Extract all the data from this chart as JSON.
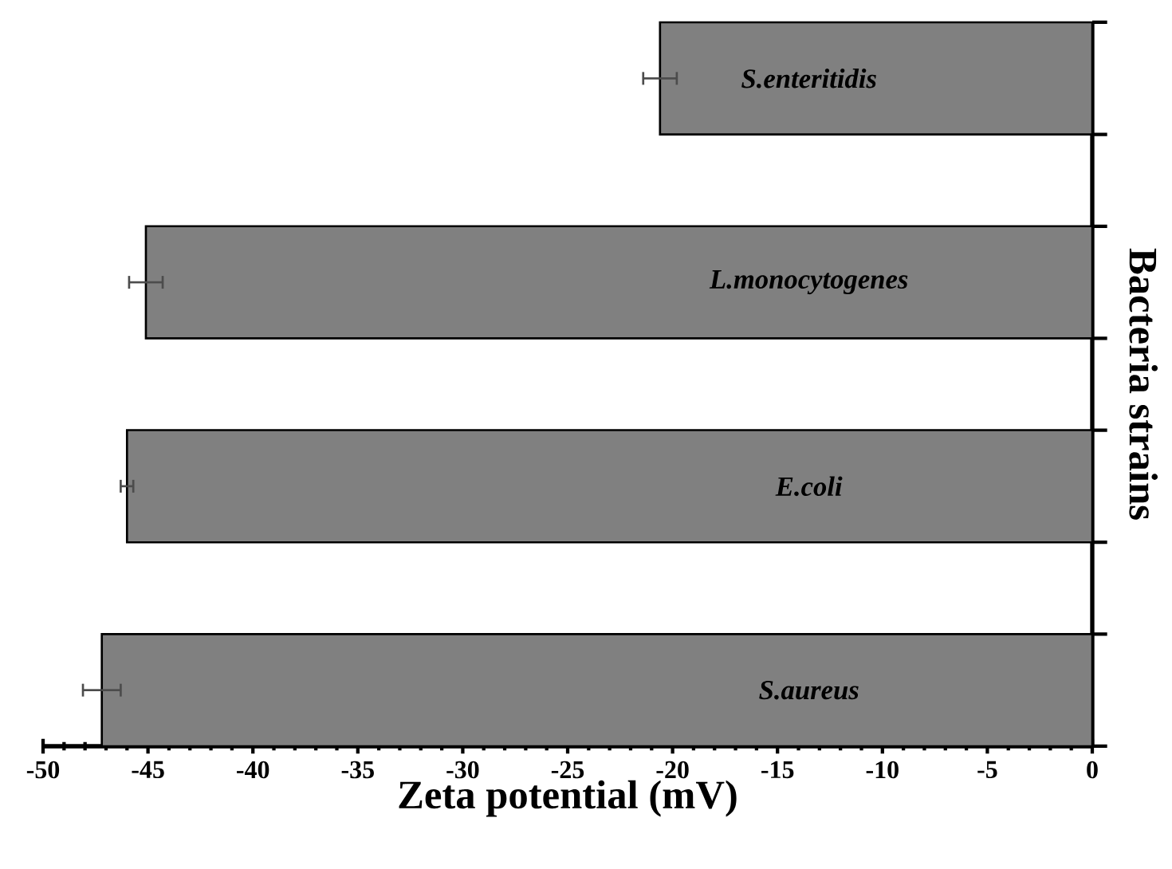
{
  "chart_data": {
    "type": "bar",
    "orientation": "horizontal",
    "categories": [
      "S.enteritidis",
      "L.monocytogenes",
      "E.coli",
      "S.aureus"
    ],
    "values": [
      -20.6,
      -45.1,
      -46.0,
      -47.2
    ],
    "errors": [
      0.8,
      0.8,
      0.3,
      0.9
    ],
    "color": "#808080",
    "xlim": [
      -50,
      0
    ],
    "xticks": [
      -50,
      -45,
      -40,
      -35,
      -30,
      -25,
      -20,
      -15,
      -10,
      -5,
      0
    ],
    "xlabel": "Zeta potential (mV)",
    "ylabel": "Bacteria strains"
  }
}
